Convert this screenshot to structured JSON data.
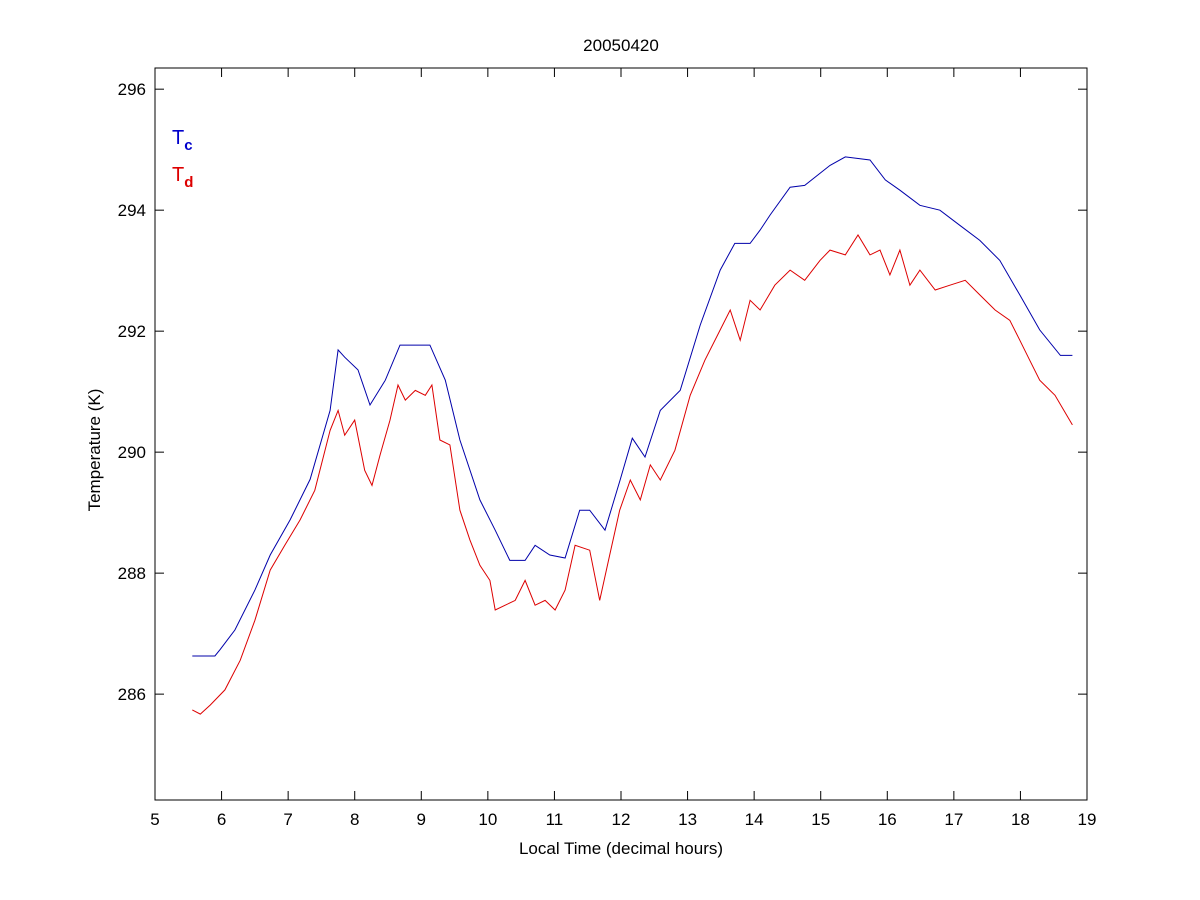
{
  "chart_data": {
    "type": "line",
    "title": "20050420",
    "xlabel": "Local Time (decimal hours)",
    "ylabel": "Temperature (K)",
    "xlim": [
      5,
      19
    ],
    "ylim": [
      284.25,
      296.35
    ],
    "xticks": [
      5,
      6,
      7,
      8,
      9,
      10,
      11,
      12,
      13,
      14,
      15,
      16,
      17,
      18,
      19
    ],
    "yticks": [
      286,
      288,
      290,
      292,
      294,
      296
    ],
    "grid": false,
    "legend": {
      "placement": "top-left",
      "entries": [
        {
          "main": "T",
          "sub": "c",
          "color": "#0000cc"
        },
        {
          "main": "T",
          "sub": "d",
          "color": "#dd0000"
        }
      ]
    },
    "series": [
      {
        "name": "Tc",
        "color": "#0000aa",
        "x": [
          5.56,
          5.9,
          5.98,
          6.2,
          6.5,
          6.73,
          7.03,
          7.33,
          7.63,
          7.75,
          7.85,
          8.05,
          8.23,
          8.46,
          8.68,
          8.86,
          9.13,
          9.36,
          9.58,
          9.88,
          10.11,
          10.33,
          10.56,
          10.71,
          10.93,
          11.16,
          11.38,
          11.53,
          11.76,
          11.99,
          12.17,
          12.36,
          12.59,
          12.89,
          13.19,
          13.49,
          13.71,
          13.94,
          14.09,
          14.24,
          14.54,
          14.76,
          15.14,
          15.37,
          15.74,
          15.97,
          16.19,
          16.49,
          16.79,
          17.09,
          17.39,
          17.69,
          17.99,
          18.29,
          18.6,
          18.78
        ],
        "y": [
          286.63,
          286.63,
          286.74,
          287.06,
          287.72,
          288.3,
          288.88,
          289.55,
          290.69,
          291.69,
          291.57,
          291.36,
          290.78,
          291.19,
          291.77,
          291.77,
          291.77,
          291.19,
          290.2,
          289.21,
          288.71,
          288.21,
          288.21,
          288.46,
          288.3,
          288.25,
          289.04,
          289.04,
          288.71,
          289.55,
          290.23,
          289.92,
          290.69,
          291.02,
          292.1,
          293.01,
          293.45,
          293.45,
          293.67,
          293.92,
          294.38,
          294.41,
          294.74,
          294.88,
          294.83,
          294.5,
          294.33,
          294.08,
          294.0,
          293.75,
          293.5,
          293.17,
          292.6,
          292.02,
          291.6,
          291.6
        ]
      },
      {
        "name": "Td",
        "color": "#dd0000",
        "x": [
          5.56,
          5.68,
          5.83,
          6.05,
          6.28,
          6.5,
          6.73,
          6.95,
          7.18,
          7.4,
          7.63,
          7.75,
          7.85,
          8.0,
          8.15,
          8.26,
          8.38,
          8.53,
          8.65,
          8.76,
          8.91,
          9.06,
          9.16,
          9.28,
          9.43,
          9.58,
          9.73,
          9.88,
          10.03,
          10.11,
          10.26,
          10.41,
          10.56,
          10.71,
          10.86,
          11.01,
          11.16,
          11.31,
          11.53,
          11.68,
          11.83,
          11.98,
          12.14,
          12.29,
          12.44,
          12.59,
          12.81,
          13.04,
          13.26,
          13.49,
          13.64,
          13.79,
          13.94,
          14.09,
          14.31,
          14.54,
          14.76,
          14.99,
          15.14,
          15.37,
          15.56,
          15.74,
          15.89,
          16.04,
          16.19,
          16.34,
          16.49,
          16.72,
          16.94,
          17.17,
          17.39,
          17.62,
          17.84,
          17.99,
          18.14,
          18.29,
          18.52,
          18.78
        ],
        "y": [
          285.74,
          285.67,
          285.82,
          286.07,
          286.56,
          287.22,
          288.05,
          288.46,
          288.88,
          289.37,
          290.36,
          290.69,
          290.28,
          290.53,
          289.7,
          289.45,
          289.95,
          290.53,
          291.11,
          290.86,
          291.02,
          290.94,
          291.11,
          290.2,
          290.12,
          289.04,
          288.55,
          288.13,
          287.88,
          287.39,
          287.47,
          287.55,
          287.88,
          287.47,
          287.55,
          287.39,
          287.72,
          288.46,
          288.38,
          287.55,
          288.3,
          289.04,
          289.54,
          289.21,
          289.79,
          289.54,
          290.03,
          290.94,
          291.52,
          292.02,
          292.35,
          291.85,
          292.51,
          292.35,
          292.76,
          293.01,
          292.84,
          293.17,
          293.34,
          293.26,
          293.59,
          293.26,
          293.34,
          292.93,
          293.34,
          292.76,
          293.01,
          292.68,
          292.76,
          292.84,
          292.6,
          292.35,
          292.18,
          291.85,
          291.52,
          291.19,
          290.94,
          290.45
        ]
      }
    ]
  }
}
